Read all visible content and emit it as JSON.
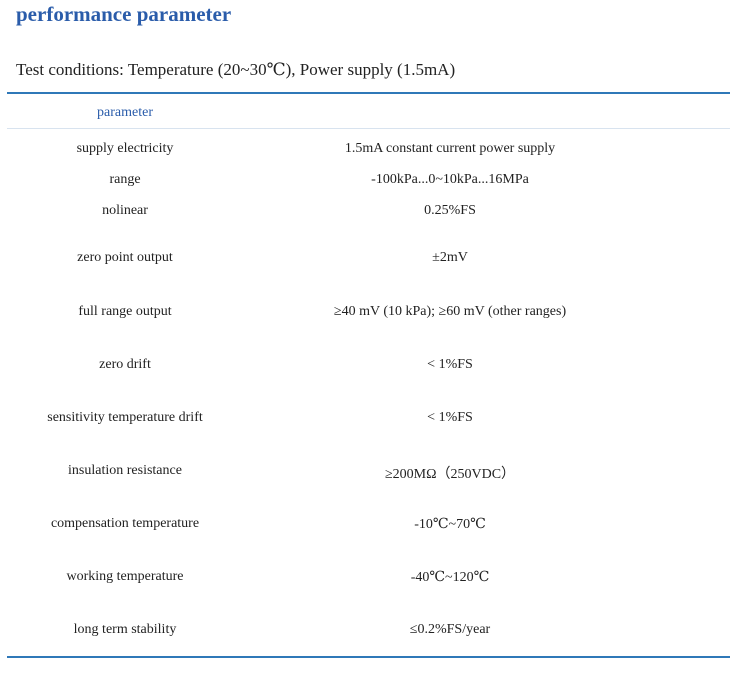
{
  "header": {
    "title": "performance parameter",
    "conditions": "Test conditions: Temperature (20~30℃), Power supply (1.5mA)"
  },
  "table": {
    "header": [
      "parameter"
    ],
    "rows": [
      [
        "supply electricity",
        "1.5mA constant current power supply"
      ],
      [
        "range",
        "-100kPa...0~10kPa...16MPa"
      ],
      [
        "nolinear",
        "0.25%FS"
      ],
      [
        "zero point output",
        "±2mV"
      ],
      [
        "full range output",
        "≥40 mV (10 kPa);  ≥60 mV (other ranges)"
      ],
      [
        "zero drift",
        "< 1%FS"
      ],
      [
        "sensitivity temperature drift",
        "< 1%FS"
      ],
      [
        "insulation resistance",
        "≥200MΩ（250VDC）"
      ],
      [
        "compensation temperature",
        "-10℃~70℃"
      ],
      [
        "working temperature",
        "-40℃~120℃"
      ],
      [
        "long term stability",
        "≤0.2%FS/year"
      ]
    ]
  }
}
